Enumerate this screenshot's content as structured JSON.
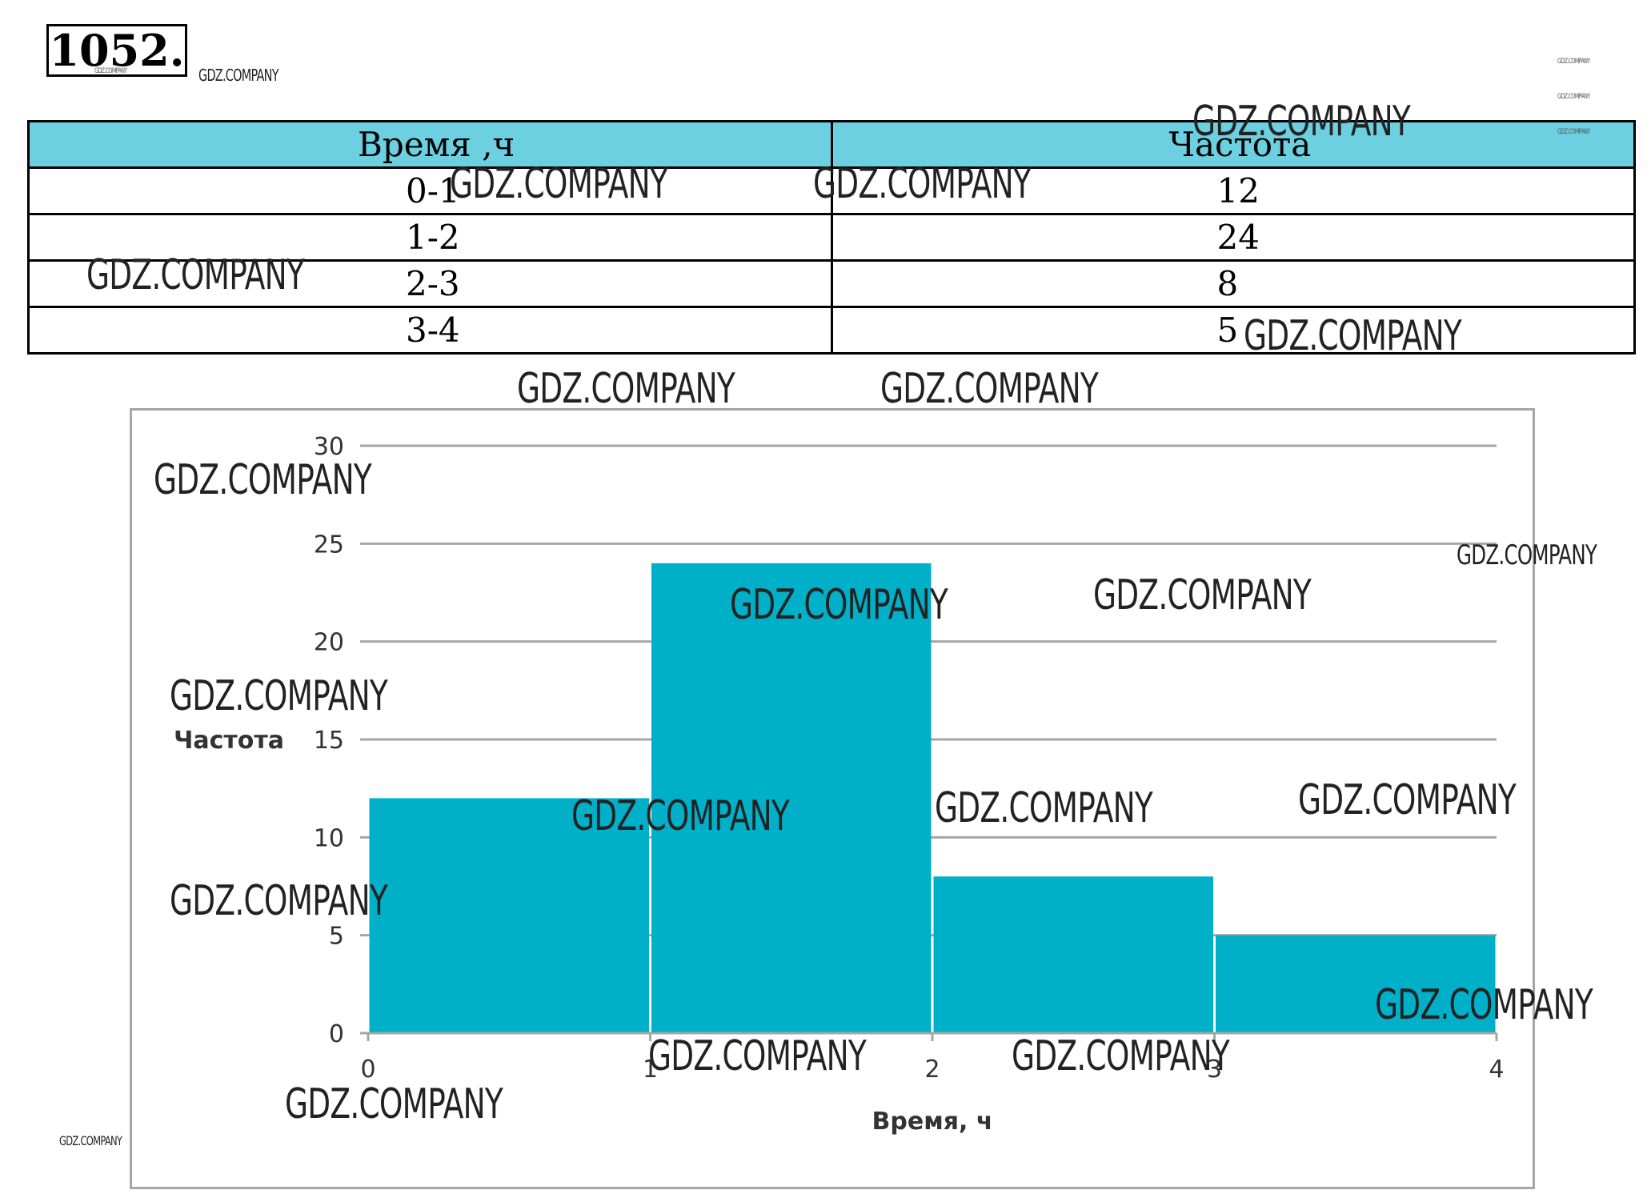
{
  "problem": {
    "number": "1052."
  },
  "table": {
    "headers": [
      "Время ,ч",
      "Частота"
    ],
    "rows": [
      [
        "0-1",
        "12"
      ],
      [
        "1-2",
        "24"
      ],
      [
        "2-3",
        "8"
      ],
      [
        "3-4",
        "5"
      ]
    ]
  },
  "chart_data": {
    "type": "bar",
    "categories": [
      "0-1",
      "1-2",
      "2-3",
      "3-4"
    ],
    "bin_edges": [
      0,
      1,
      2,
      3,
      4
    ],
    "values": [
      12,
      24,
      8,
      5
    ],
    "xlabel": "Время, ч",
    "ylabel": "Частота",
    "xticks": [
      0,
      1,
      2,
      3,
      4
    ],
    "yticks": [
      0,
      5,
      10,
      15,
      20,
      25,
      30
    ],
    "xlim": [
      0,
      4
    ],
    "ylim": [
      0,
      30
    ],
    "grid": "horizontal",
    "bar_color": "#00b0c8",
    "grid_color": "#a6a6a6"
  },
  "watermark": {
    "text": "GDZ.COMPANY"
  }
}
